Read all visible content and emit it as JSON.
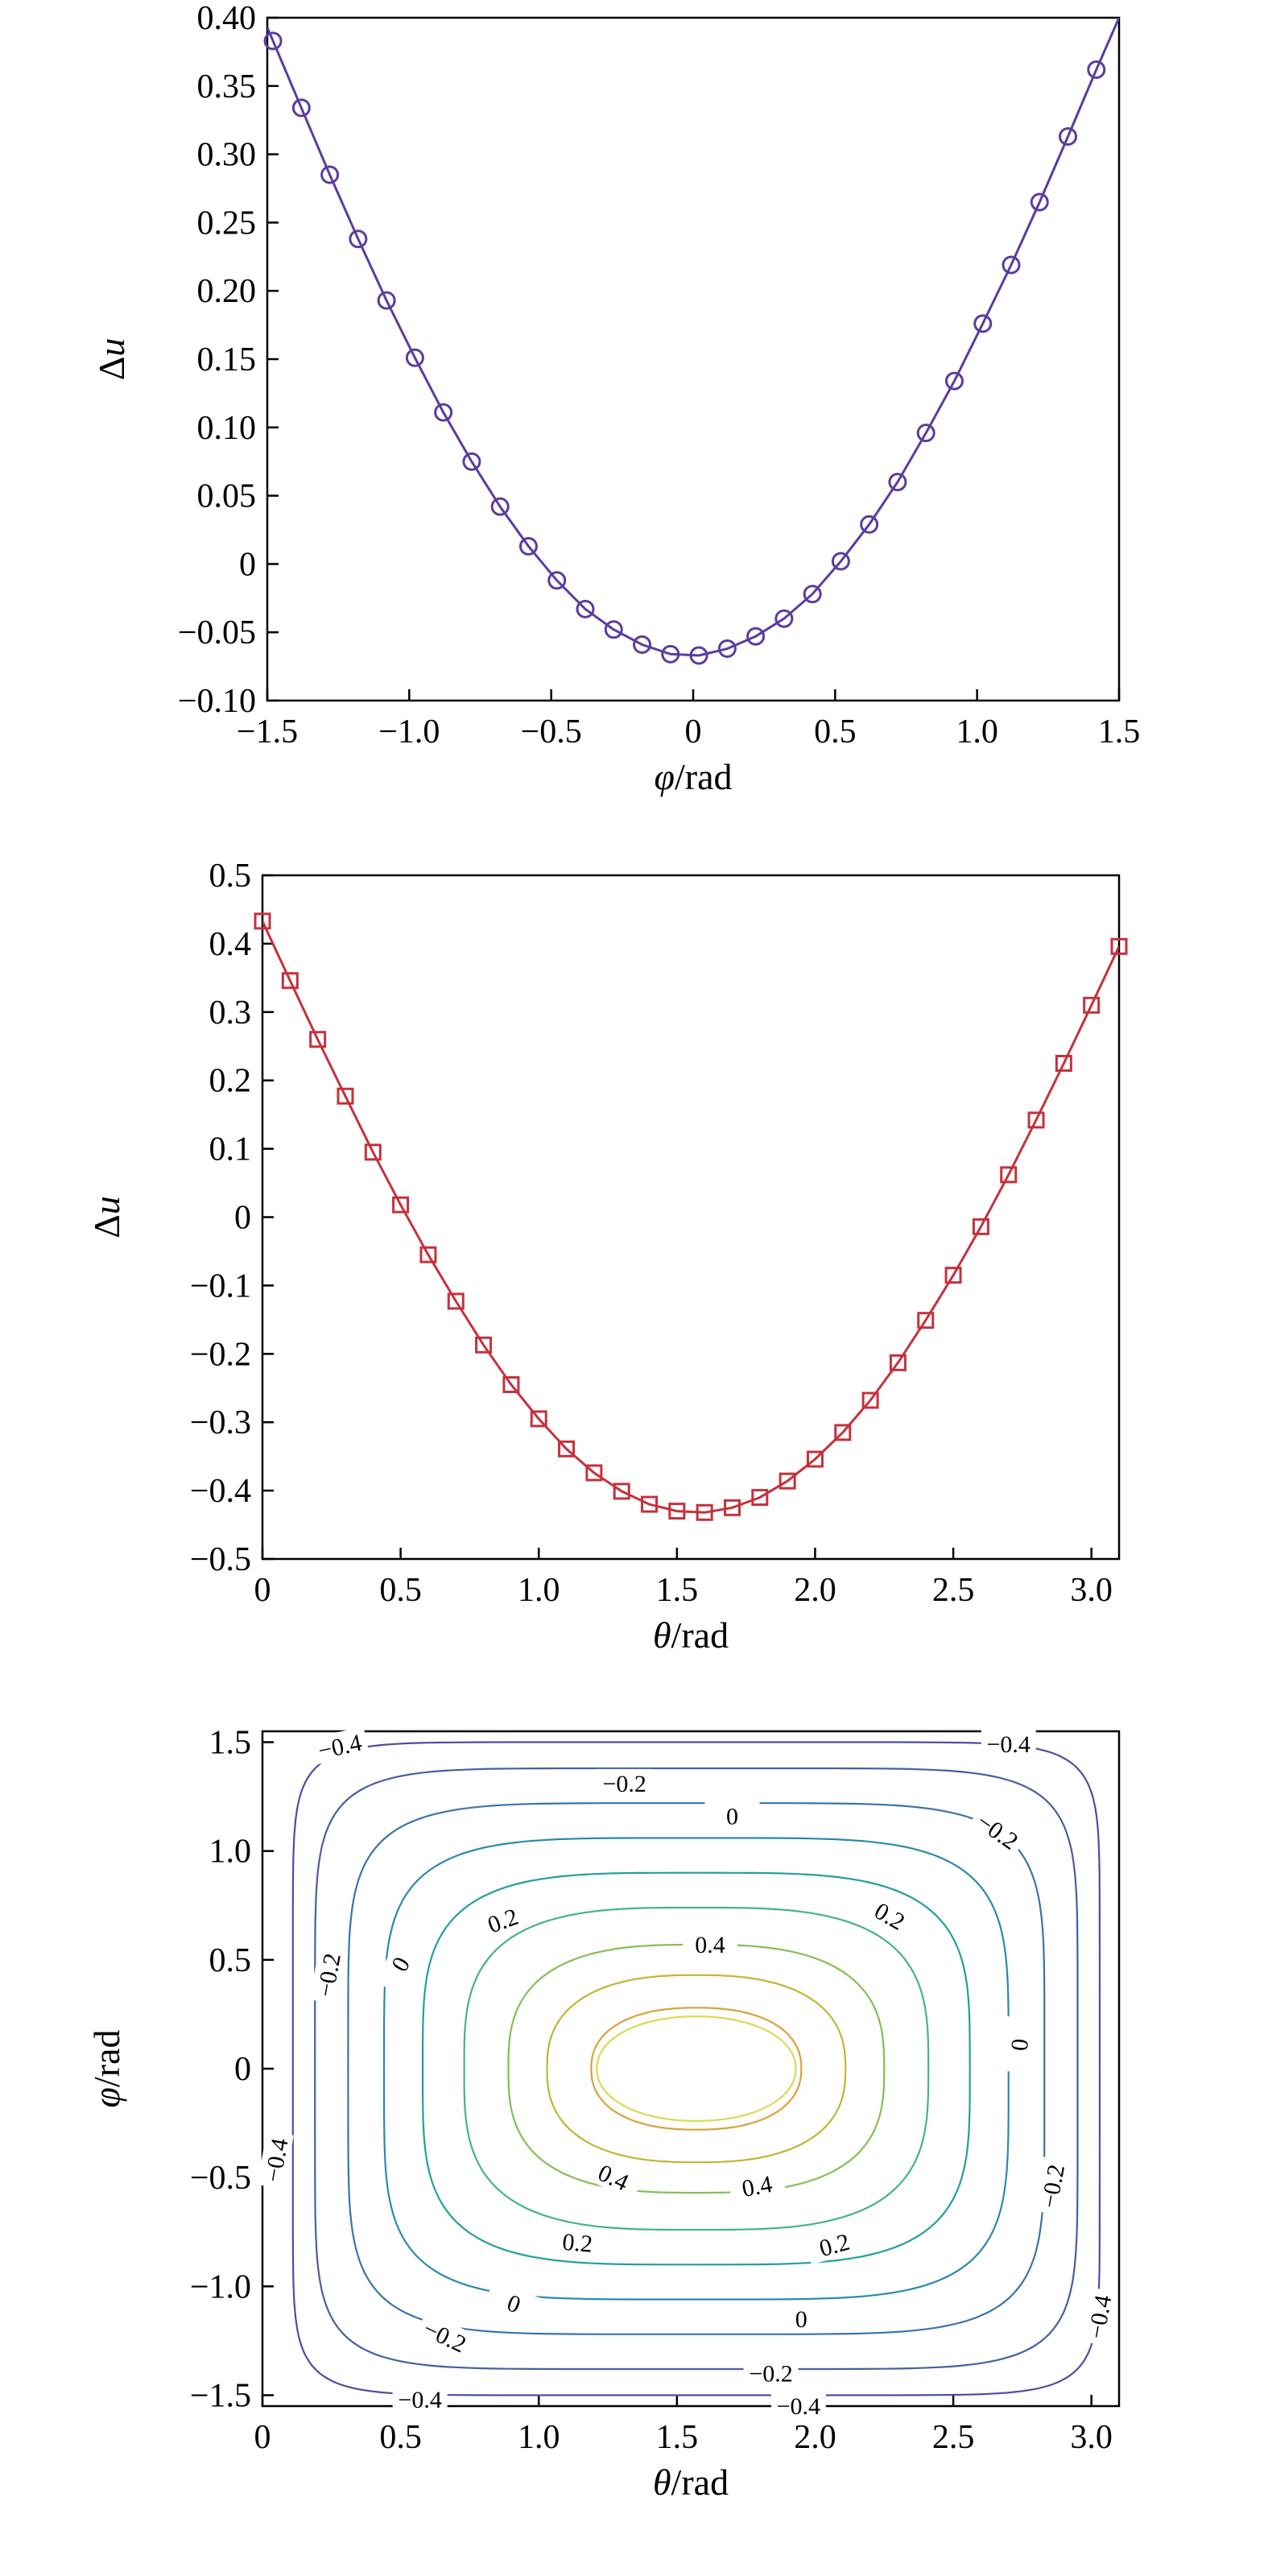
{
  "chart_data": [
    {
      "type": "line",
      "xlabel_var": "φ",
      "xlabel_unit": "/rad",
      "ylabel_delta": "Δ",
      "ylabel_var": "u",
      "xlim": [
        -1.5,
        1.5
      ],
      "ylim": [
        -0.1,
        0.4
      ],
      "xticks": [
        -1.5,
        -1.0,
        -0.5,
        0,
        0.5,
        1.0,
        1.5
      ],
      "xtick_labels": [
        "−1.5",
        "−1.0",
        "−0.5",
        "0",
        "0.5",
        "1.0",
        "1.5"
      ],
      "yticks": [
        -0.1,
        -0.05,
        0,
        0.05,
        0.1,
        0.15,
        0.2,
        0.25,
        0.3,
        0.35,
        0.4
      ],
      "ytick_labels": [
        "−0.10",
        "−0.05",
        "0",
        "0.05",
        "0.10",
        "0.15",
        "0.20",
        "0.25",
        "0.30",
        "0.35",
        "0.40"
      ],
      "grid": false,
      "line_color": "#5b3c9f",
      "marker": "circle",
      "points": [
        [
          -1.48,
          0.383
        ],
        [
          -1.38,
          0.334
        ],
        [
          -1.28,
          0.285
        ],
        [
          -1.18,
          0.238
        ],
        [
          -1.08,
          0.193
        ],
        [
          -0.98,
          0.151
        ],
        [
          -0.88,
          0.111
        ],
        [
          -0.78,
          0.075
        ],
        [
          -0.68,
          0.042
        ],
        [
          -0.58,
          0.013
        ],
        [
          -0.48,
          -0.012
        ],
        [
          -0.38,
          -0.033
        ],
        [
          -0.28,
          -0.048
        ],
        [
          -0.18,
          -0.059
        ],
        [
          -0.08,
          -0.066
        ],
        [
          0.02,
          -0.067
        ],
        [
          0.12,
          -0.062
        ],
        [
          0.22,
          -0.053
        ],
        [
          0.32,
          -0.04
        ],
        [
          0.42,
          -0.022
        ],
        [
          0.52,
          0.002
        ],
        [
          0.62,
          0.029
        ],
        [
          0.72,
          0.06
        ],
        [
          0.82,
          0.096
        ],
        [
          0.92,
          0.134
        ],
        [
          1.02,
          0.176
        ],
        [
          1.12,
          0.219
        ],
        [
          1.22,
          0.265
        ],
        [
          1.32,
          0.313
        ],
        [
          1.42,
          0.362
        ]
      ],
      "line_extra": [
        [
          -1.5,
          0.393
        ],
        [
          1.5,
          0.4
        ]
      ]
    },
    {
      "type": "line",
      "xlabel_var": "θ",
      "xlabel_unit": "/rad",
      "ylabel_delta": "Δ",
      "ylabel_var": "u",
      "xlim": [
        0,
        3.1
      ],
      "ylim": [
        -0.5,
        0.5
      ],
      "xticks": [
        0,
        0.5,
        1.0,
        1.5,
        2.0,
        2.5,
        3.0
      ],
      "xtick_labels": [
        "0",
        "0.5",
        "1.0",
        "1.5",
        "2.0",
        "2.5",
        "3.0"
      ],
      "yticks": [
        -0.5,
        -0.4,
        -0.3,
        -0.2,
        -0.1,
        0,
        0.1,
        0.2,
        0.3,
        0.4,
        0.5
      ],
      "ytick_labels": [
        "−0.5",
        "−0.4",
        "−0.3",
        "−0.2",
        "−0.1",
        "0",
        "0.1",
        "0.2",
        "0.3",
        "0.4",
        "0.5"
      ],
      "grid": false,
      "line_color": "#c4323d",
      "marker": "square",
      "points": [
        [
          0.0,
          0.433
        ],
        [
          0.1,
          0.346
        ],
        [
          0.2,
          0.26
        ],
        [
          0.3,
          0.177
        ],
        [
          0.4,
          0.095
        ],
        [
          0.5,
          0.018
        ],
        [
          0.6,
          -0.055
        ],
        [
          0.7,
          -0.123
        ],
        [
          0.8,
          -0.187
        ],
        [
          0.9,
          -0.245
        ],
        [
          1.0,
          -0.295
        ],
        [
          1.1,
          -0.339
        ],
        [
          1.2,
          -0.374
        ],
        [
          1.3,
          -0.401
        ],
        [
          1.4,
          -0.42
        ],
        [
          1.5,
          -0.43
        ],
        [
          1.6,
          -0.432
        ],
        [
          1.7,
          -0.425
        ],
        [
          1.8,
          -0.41
        ],
        [
          1.9,
          -0.386
        ],
        [
          2.0,
          -0.354
        ],
        [
          2.1,
          -0.315
        ],
        [
          2.2,
          -0.268
        ],
        [
          2.3,
          -0.213
        ],
        [
          2.4,
          -0.151
        ],
        [
          2.5,
          -0.085
        ],
        [
          2.6,
          -0.014
        ],
        [
          2.7,
          0.062
        ],
        [
          2.8,
          0.142
        ],
        [
          2.9,
          0.225
        ],
        [
          3.0,
          0.31
        ],
        [
          3.1,
          0.396
        ]
      ]
    },
    {
      "type": "contour",
      "xlabel_var": "θ",
      "xlabel_unit": "/rad",
      "ylabel_var": "φ",
      "ylabel_unit": "/rad",
      "xlim": [
        0,
        3.1
      ],
      "ylim": [
        -1.55,
        1.55
      ],
      "xticks": [
        0,
        0.5,
        1.0,
        1.5,
        2.0,
        2.5,
        3.0
      ],
      "xtick_labels": [
        "0",
        "0.5",
        "1.0",
        "1.5",
        "2.0",
        "2.5",
        "3.0"
      ],
      "yticks": [
        -1.5,
        -1.0,
        -0.5,
        0,
        0.5,
        1.0,
        1.5
      ],
      "ytick_labels": [
        "−1.5",
        "−1.0",
        "−0.5",
        "0",
        "0.5",
        "1.0",
        "1.5"
      ],
      "grid": false,
      "levels": [
        {
          "value": -0.4,
          "color": "#4a4fa0",
          "half_width": [
            1.46,
            1.5
          ],
          "exponent": 10
        },
        {
          "value": -0.3,
          "color": "#45609f",
          "half_width": [
            1.38,
            1.38
          ],
          "exponent": 7
        },
        {
          "value": -0.2,
          "color": "#3b73a8",
          "half_width": [
            1.26,
            1.22
          ],
          "exponent": 5.5
        },
        {
          "value": -0.1,
          "color": "#2b89ad",
          "half_width": [
            1.13,
            1.06
          ],
          "exponent": 4.5
        },
        {
          "value": 0,
          "color": "#249e9e",
          "half_width": [
            0.99,
            0.9
          ],
          "exponent": 3.8
        },
        {
          "value": 0.1,
          "color": "#48b385",
          "half_width": [
            0.84,
            0.74
          ],
          "exponent": 3.2
        },
        {
          "value": 0.2,
          "color": "#82bf57",
          "half_width": [
            0.68,
            0.57
          ],
          "exponent": 2.8
        },
        {
          "value": 0.3,
          "color": "#c1b536",
          "half_width": [
            0.54,
            0.43
          ],
          "exponent": 2.5
        },
        {
          "value": 0.4,
          "color": "#d9a23a",
          "half_width": [
            0.38,
            0.28
          ],
          "exponent": 2.3
        },
        {
          "value": 0.5,
          "color": "#dada52",
          "half_width": [
            0.36,
            0.24
          ],
          "exponent": 2.1
        }
      ],
      "center": [
        1.57,
        0
      ],
      "level_labels": [
        {
          "text": "−0.4",
          "x": 0.28,
          "y": 1.48,
          "rot": -12
        },
        {
          "text": "−0.4",
          "x": 2.7,
          "y": 1.49,
          "rot": 0
        },
        {
          "text": "−0.2",
          "x": 1.31,
          "y": 1.31,
          "rot": 0
        },
        {
          "text": "−0.2",
          "x": 2.66,
          "y": 1.09,
          "rot": 35
        },
        {
          "text": "0",
          "x": 1.7,
          "y": 1.16,
          "rot": 0
        },
        {
          "text": "0.2",
          "x": 2.27,
          "y": 0.7,
          "rot": 30
        },
        {
          "text": "0.2",
          "x": 0.87,
          "y": 0.68,
          "rot": -20
        },
        {
          "text": "0.4",
          "x": 1.62,
          "y": 0.57,
          "rot": 0
        },
        {
          "text": "0",
          "x": 0.5,
          "y": 0.48,
          "rot": -60
        },
        {
          "text": "−0.2",
          "x": 0.24,
          "y": 0.43,
          "rot": -80
        },
        {
          "text": "0",
          "x": 2.74,
          "y": 0.11,
          "rot": -85
        },
        {
          "text": "−0.4",
          "x": 0.05,
          "y": -0.42,
          "rot": -80
        },
        {
          "text": "0.4",
          "x": 1.27,
          "y": -0.5,
          "rot": 25
        },
        {
          "text": "0.4",
          "x": 1.79,
          "y": -0.54,
          "rot": -10
        },
        {
          "text": "−0.2",
          "x": 2.86,
          "y": -0.54,
          "rot": -80
        },
        {
          "text": "0.2",
          "x": 1.14,
          "y": -0.8,
          "rot": 5
        },
        {
          "text": "0.2",
          "x": 2.07,
          "y": -0.81,
          "rot": -15
        },
        {
          "text": "0",
          "x": 0.91,
          "y": -1.08,
          "rot": 20
        },
        {
          "text": "0",
          "x": 1.95,
          "y": -1.15,
          "rot": 0
        },
        {
          "text": "−0.4",
          "x": 3.03,
          "y": -1.14,
          "rot": -80
        },
        {
          "text": "−0.2",
          "x": 0.66,
          "y": -1.23,
          "rot": 25
        },
        {
          "text": "−0.2",
          "x": 1.84,
          "y": -1.4,
          "rot": 0
        },
        {
          "text": "−0.4",
          "x": 0.57,
          "y": -1.52,
          "rot": 0
        },
        {
          "text": "−0.4",
          "x": 1.94,
          "y": -1.55,
          "rot": 0
        }
      ]
    }
  ]
}
